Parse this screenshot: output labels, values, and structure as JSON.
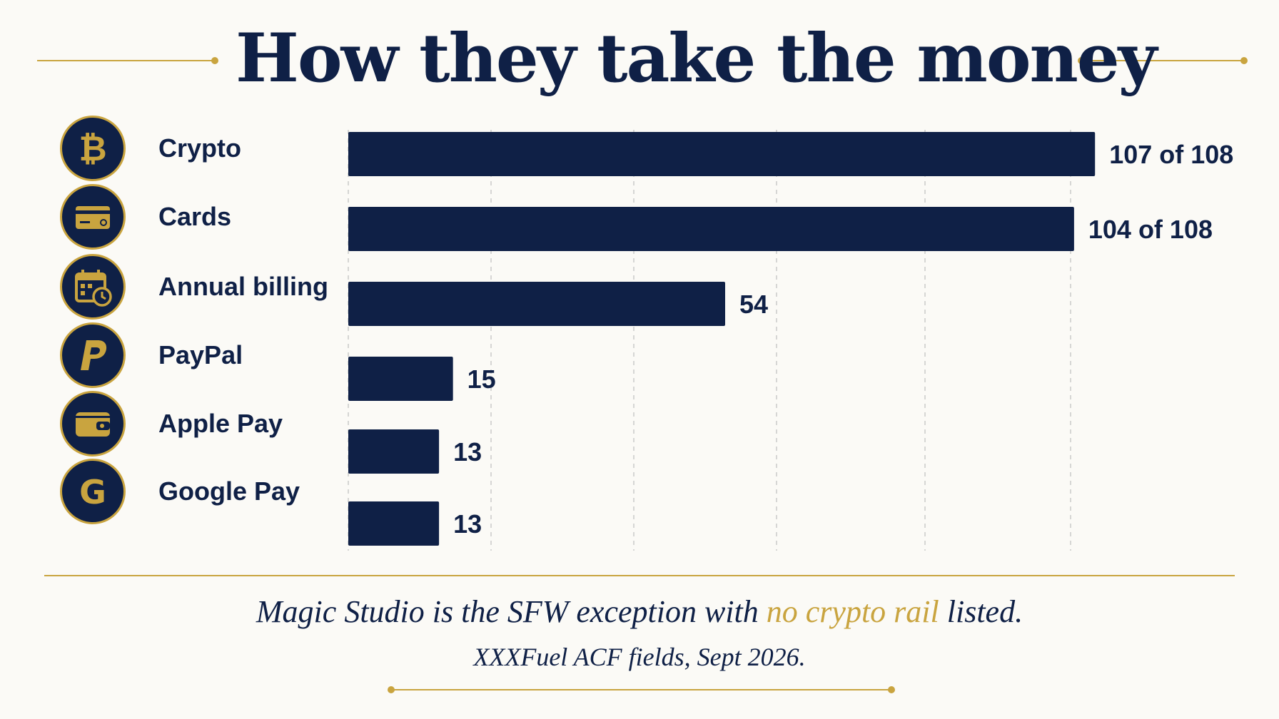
{
  "colors": {
    "navy": "#0f2046",
    "gold": "#c9a43f",
    "background": "#fbfaf6",
    "grid": "#c9c9c9"
  },
  "chart_data": {
    "type": "bar",
    "orientation": "horizontal",
    "title": "How they take the money",
    "categories": [
      "Crypto",
      "Cards",
      "Annual billing",
      "PayPal",
      "Apple Pay",
      "Google Pay"
    ],
    "values": [
      107,
      104,
      54,
      15,
      13,
      13
    ],
    "value_labels": [
      "107 of 108",
      "104 of 108",
      "54",
      "15",
      "13",
      "13"
    ],
    "icons": [
      "bitcoin-icon",
      "credit-card-icon",
      "calendar-clock-icon",
      "paypal-icon",
      "wallet-icon",
      "google-icon"
    ],
    "xlim": [
      0,
      108
    ],
    "grid": true,
    "grid_style": "vertical dashed",
    "legend": "none"
  },
  "footer": {
    "note_before": "Magic Studio is the SFW exception with ",
    "note_highlight": "no crypto rail",
    "note_after": " listed.",
    "source": "XXXFuel ACF fields, Sept 2026."
  }
}
